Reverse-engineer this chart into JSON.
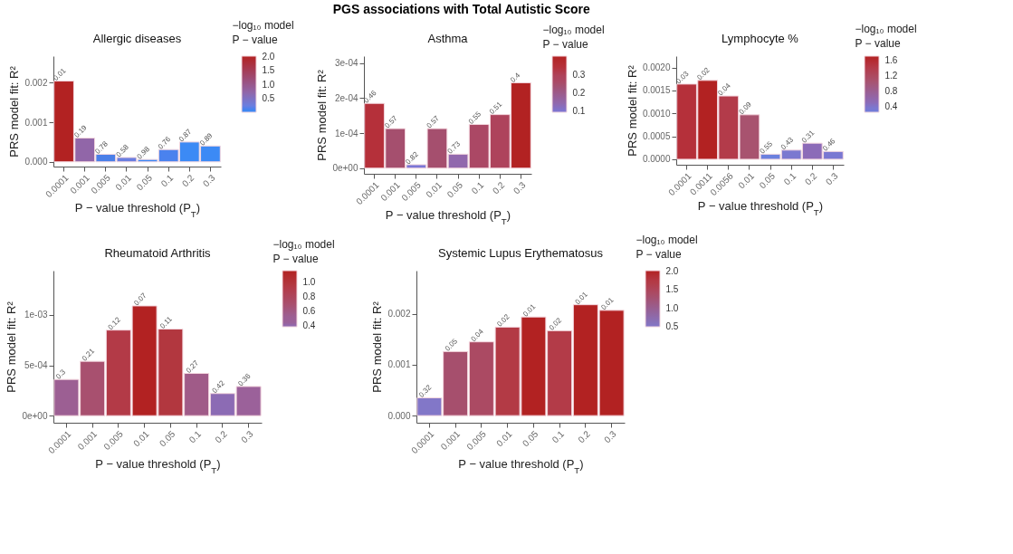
{
  "chart_data": [
    {
      "type": "bar",
      "title": "Allergic diseases",
      "xlabel": "P − value threshold (P$_{T}$)",
      "ylabel": "PRS model fit:  R²",
      "categories": [
        "0.0001",
        "0.001",
        "0.005",
        "0.01",
        "0.05",
        "0.1",
        "0.2",
        "0.3"
      ],
      "values": [
        0.00204,
        0.0006,
        0.00019,
        0.00011,
        6e-05,
        0.00031,
        0.0005,
        0.0004
      ],
      "colors": [
        "#b22222",
        "#9166a8",
        "#4a7fe8",
        "#6b7ee0",
        "#3b86f5",
        "#4a82ee",
        "#3c8af5",
        "#3c8af5"
      ],
      "cvalues": [
        2.0,
        0.72,
        0.11,
        0.24,
        0.01,
        0.12,
        0.06,
        0.05
      ],
      "annotations": [
        "PGS associations with Total Autistic Score",
        {
          "text": "0.01",
          "x": "0.0001",
          "y": 0.00204
        },
        {
          "text": "0.19",
          "x": "0.001",
          "y": 0.0006
        },
        {
          "text": "0.78",
          "x": "0.005",
          "y": 0.00019
        },
        {
          "text": "0.58",
          "x": "0.01",
          "y": 0.00011
        },
        {
          "text": "0.98",
          "x": "0.05",
          "y": 6e-05
        },
        {
          "text": "0.76",
          "x": "0.1",
          "y": 0.00031
        },
        {
          "text": "0.87",
          "x": "0.2",
          "y": 0.0005
        },
        {
          "text": "0.89",
          "x": "0.3",
          "y": 0.0004
        }
      ],
      "ylim": [
        -0.00012,
        0.00267
      ],
      "yticks": [
        {
          "value": 0,
          "label": "0.000"
        },
        {
          "value": 0.001,
          "label": "0.001"
        },
        {
          "value": 0.002,
          "label": "0.002"
        }
      ],
      "legend_title": "−log₁₀ model\nP − value",
      "clim": [
        0.01,
        2.0
      ],
      "cticks": [
        {
          "value": 0.5,
          "label": "0.5"
        },
        {
          "value": 1,
          "label": "1.0"
        },
        {
          "value": 1.5,
          "label": "1.5"
        },
        {
          "value": 2,
          "label": "2.0"
        }
      ]
    },
    {
      "type": "bar",
      "title": "Asthma",
      "xlabel": "P − value threshold (P$_{T}$)",
      "ylabel": "PRS model fit:  R²",
      "categories": [
        "0.0001",
        "0.001",
        "0.005",
        "0.01",
        "0.05",
        "0.1",
        "0.2",
        "0.3"
      ],
      "values": [
        0.000185,
        0.000113,
        1e-05,
        0.000113,
        4e-05,
        0.000125,
        0.000153,
        0.000244
      ],
      "colors": [
        "#b5303a",
        "#a54f6e",
        "#7b77d6",
        "#a54f6e",
        "#9168ad",
        "#ab4865",
        "#ae435c",
        "#b22222"
      ],
      "cvalues": [
        0.34,
        0.24,
        0.09,
        0.24,
        0.14,
        0.26,
        0.29,
        0.4
      ],
      "annotations": [
        {
          "text": "0.46",
          "x": "0.0001",
          "y": 0.000185
        },
        {
          "text": "0.57",
          "x": "0.001",
          "y": 0.000113
        },
        {
          "text": "0.82",
          "x": "0.005",
          "y": 1e-05
        },
        {
          "text": "0.57",
          "x": "0.01",
          "y": 0.000113
        },
        {
          "text": "0.73",
          "x": "0.05",
          "y": 4e-05
        },
        {
          "text": "0.55",
          "x": "0.1",
          "y": 0.000125
        },
        {
          "text": "0.51",
          "x": "0.2",
          "y": 0.000153
        },
        {
          "text": "0.4",
          "x": "0.3",
          "y": 0.000244
        }
      ],
      "ylim": [
        -1.6e-05,
        0.00032
      ],
      "yticks": [
        {
          "value": 0,
          "label": "0e+00"
        },
        {
          "value": 0.0001,
          "label": "1e-04"
        },
        {
          "value": 0.0002,
          "label": "2e-04"
        },
        {
          "value": 0.0003,
          "label": "3e-04"
        }
      ],
      "legend_title": "−log₁₀ model\nP − value",
      "clim": [
        0.09,
        0.4
      ],
      "cticks": [
        0.1,
        0.2,
        0.3
      ]
    },
    {
      "type": "bar",
      "title": "Lymphocyte %",
      "xlabel": "P − value threshold (P$_{T}$)",
      "ylabel": "PRS model fit:  R²",
      "categories": [
        "0.0001",
        "0.0011",
        "0.0056",
        "0.01",
        "0.05",
        "0.1",
        "0.2",
        "0.3"
      ],
      "values": [
        0.00164,
        0.00172,
        0.00138,
        0.00097,
        0.00011,
        0.0002,
        0.00035,
        0.00017
      ],
      "colors": [
        "#b5303a",
        "#b22222",
        "#b33b4a",
        "#a8536f",
        "#6b80de",
        "#7b78d0",
        "#8c6bb8",
        "#7a77d2"
      ],
      "cvalues": [
        1.52,
        1.7,
        1.4,
        1.05,
        0.26,
        0.37,
        0.51,
        0.34
      ],
      "annotations": [
        {
          "text": "0.03",
          "x": "0.0001",
          "y": 0.00164
        },
        {
          "text": "0.02",
          "x": "0.0011",
          "y": 0.00172
        },
        {
          "text": "0.04",
          "x": "0.0056",
          "y": 0.00138
        },
        {
          "text": "0.09",
          "x": "0.01",
          "y": 0.00097
        },
        {
          "text": "0.55",
          "x": "0.05",
          "y": 0.00011
        },
        {
          "text": "0.43",
          "x": "0.1",
          "y": 0.0002
        },
        {
          "text": "0.31",
          "x": "0.2",
          "y": 0.00035
        },
        {
          "text": "0.46",
          "x": "0.3",
          "y": 0.00017
        }
      ],
      "ylim": [
        -0.00012,
        0.00225
      ],
      "yticks": [
        {
          "value": 0,
          "label": "0.0000"
        },
        {
          "value": 0.0005,
          "label": "0.0005"
        },
        {
          "value": 0.001,
          "label": "0.0010"
        },
        {
          "value": 0.0015,
          "label": "0.0015"
        },
        {
          "value": 0.002,
          "label": "0.0020"
        }
      ],
      "legend_title": "−log₁₀ model\nP − value",
      "clim": [
        0.26,
        1.7
      ],
      "cticks": [
        0.4,
        0.8,
        1.2,
        1.6
      ]
    },
    {
      "type": "bar",
      "title": "Rheumatoid Arthritis",
      "xlabel": "P − value threshold (P$_{T}$)",
      "ylabel": "PRS model fit:  R²",
      "categories": [
        "0.0001",
        "0.001",
        "0.005",
        "0.01",
        "0.05",
        "0.1",
        "0.2",
        "0.3"
      ],
      "values": [
        0.00036,
        0.00054,
        0.00085,
        0.00109,
        0.00086,
        0.00042,
        0.00022,
        0.00029
      ],
      "colors": [
        "#9c5f93",
        "#a8506f",
        "#b33a47",
        "#b22222",
        "#b2373f",
        "#a05b88",
        "#8c6bb4",
        "#9b619a"
      ],
      "cvalues": [
        0.52,
        0.68,
        0.92,
        1.15,
        0.96,
        0.57,
        0.38,
        0.44
      ],
      "annotations": [
        {
          "text": "0.3",
          "x": "0.0001",
          "y": 0.00036
        },
        {
          "text": "0.21",
          "x": "0.001",
          "y": 0.00054
        },
        {
          "text": "0.12",
          "x": "0.005",
          "y": 0.00085
        },
        {
          "text": "0.07",
          "x": "0.01",
          "y": 0.00109
        },
        {
          "text": "0.11",
          "x": "0.05",
          "y": 0.00086
        },
        {
          "text": "0.27",
          "x": "0.1",
          "y": 0.00042
        },
        {
          "text": "0.42",
          "x": "0.2",
          "y": 0.00022
        },
        {
          "text": "0.36",
          "x": "0.3",
          "y": 0.00029
        }
      ],
      "ylim": [
        -7e-05,
        0.00144
      ],
      "yticks": [
        {
          "value": 0,
          "label": "0e+00"
        },
        {
          "value": 0.0005,
          "label": "5e-04"
        },
        {
          "value": 0.001,
          "label": "1e-03"
        }
      ],
      "legend_title": "−log₁₀ model\nP − value",
      "clim": [
        0.38,
        1.15
      ],
      "cticks": [
        {
          "value": 0.4,
          "label": "0.4"
        },
        {
          "value": 0.6,
          "label": "0.6"
        },
        {
          "value": 0.8,
          "label": "0.8"
        },
        {
          "value": 1,
          "label": "1.0"
        }
      ]
    },
    {
      "type": "bar",
      "title": "Systemic Lupus Erythematosus",
      "xlabel": "P − value threshold (P$_{T}$)",
      "ylabel": "PRS model fit:  R²",
      "categories": [
        "0.0001",
        "0.001",
        "0.005",
        "0.01",
        "0.05",
        "0.1",
        "0.2",
        "0.3"
      ],
      "values": [
        0.00035,
        0.00126,
        0.00145,
        0.00174,
        0.00194,
        0.00167,
        0.00218,
        0.00207
      ],
      "colors": [
        "#8277c8",
        "#a64f6d",
        "#ab4a63",
        "#b33a45",
        "#b22222",
        "#b33b48",
        "#b22222",
        "#b22222"
      ],
      "cvalues": [
        0.49,
        1.3,
        1.4,
        1.7,
        2.0,
        1.7,
        2.0,
        2.0
      ],
      "annotations": [
        {
          "text": "0.32",
          "x": "0.0001",
          "y": 0.00035
        },
        {
          "text": "0.05",
          "x": "0.001",
          "y": 0.00126
        },
        {
          "text": "0.04",
          "x": "0.005",
          "y": 0.00145
        },
        {
          "text": "0.02",
          "x": "0.01",
          "y": 0.00174
        },
        {
          "text": "0.01",
          "x": "0.05",
          "y": 0.00194
        },
        {
          "text": "0.02",
          "x": "0.1",
          "y": 0.00167
        },
        {
          "text": "0.01",
          "x": "0.2",
          "y": 0.00218
        },
        {
          "text": "0.01",
          "x": "0.3",
          "y": 0.00207
        }
      ],
      "ylim": [
        -0.00014,
        0.00285
      ],
      "yticks": [
        {
          "value": 0,
          "label": "0.000"
        },
        {
          "value": 0.001,
          "label": "0.001"
        },
        {
          "value": 0.002,
          "label": "0.002"
        }
      ],
      "legend_title": "−log₁₀ model\nP − value",
      "clim": [
        0.49,
        2.0
      ],
      "cticks": [
        0.5,
        {
          "value": 1,
          "label": "1.0"
        },
        1.5,
        {
          "value": 2,
          "label": "2.0"
        }
      ]
    }
  ]
}
